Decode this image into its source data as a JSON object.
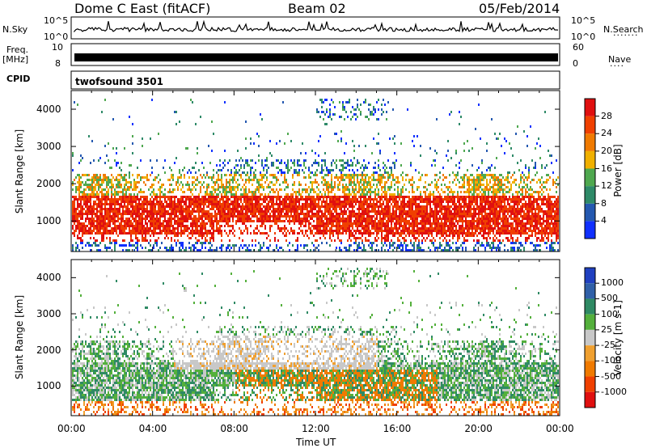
{
  "header": {
    "station": "Dome C East (fitACF)",
    "beam": "Beam 02",
    "date": "05/Feb/2014"
  },
  "side_labels": {
    "nsky": "N.Sky",
    "freq": "Freq.",
    "freq_unit": "[MHz]",
    "cpid": "CPID",
    "nsearch": "N.Search",
    "nave": "Nave",
    "cpid_value": "twofsound 3501"
  },
  "small_axes": {
    "noise_top": "10^5",
    "noise_bottom": "10^0",
    "freq_top": "10",
    "freq_bottom": "8",
    "nave_top": "60",
    "nave_bottom": "0"
  },
  "colors": {
    "power": [
      "#1030ff",
      "#2458b0",
      "#2e8a68",
      "#4fa84f",
      "#f0b000",
      "#f07a00",
      "#f04000",
      "#e01010"
    ],
    "velocity": [
      "#2040c0",
      "#3060a8",
      "#2f8a64",
      "#54b03c",
      "#c8c8c8",
      "#f0a030",
      "#f07a00",
      "#f04000",
      "#e01010"
    ]
  },
  "chart_data": [
    {
      "type": "heatmap",
      "name": "power",
      "xlabel": "",
      "ylabel": "Slant Range [km]",
      "yticks": [
        "1000",
        "2000",
        "3000",
        "4000"
      ],
      "ylim": [
        180,
        4500
      ],
      "xlim": [
        0,
        24
      ],
      "colorbar_label": "Power [dB]",
      "colorbar_ticks": [
        "4",
        "8",
        "12",
        "16",
        "20",
        "24",
        "28"
      ],
      "colorbar_range": [
        0,
        32
      ]
    },
    {
      "type": "heatmap",
      "name": "velocity",
      "xlabel": "Time UT",
      "ylabel": "Slant Range [km]",
      "xticks": [
        "00:00",
        "04:00",
        "08:00",
        "12:00",
        "16:00",
        "20:00",
        "00:00"
      ],
      "yticks": [
        "1000",
        "2000",
        "3000",
        "4000"
      ],
      "ylim": [
        180,
        4500
      ],
      "xlim": [
        0,
        24
      ],
      "colorbar_label": "Velocity [m s-1]",
      "colorbar_ticks": [
        "1000",
        "500",
        "100",
        "25",
        "-25",
        "-100",
        "-500",
        "-1000"
      ]
    }
  ]
}
